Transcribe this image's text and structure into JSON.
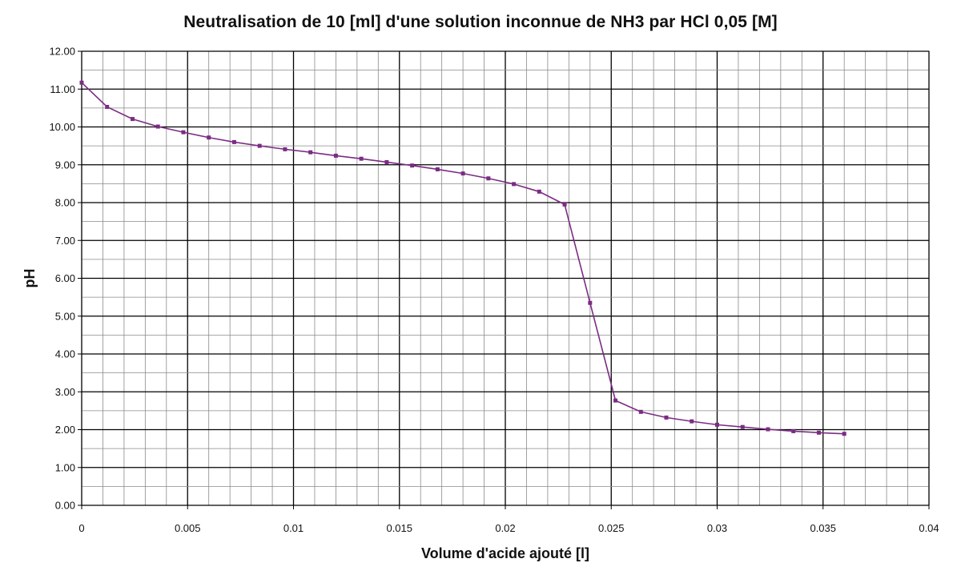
{
  "chart_data": {
    "type": "line",
    "title": "Neutralisation de 10 [ml] d'une solution inconnue de NH3 par HCl 0,05 [M]",
    "xlabel": "Volume d'acide ajouté [l]",
    "ylabel": "pH",
    "xlim": [
      0,
      0.04
    ],
    "ylim": [
      0,
      12
    ],
    "x_ticks": [
      "0",
      "0.005",
      "0.01",
      "0.015",
      "0.02",
      "0.025",
      "0.03",
      "0.035",
      "0.04"
    ],
    "y_ticks": [
      "0.00",
      "1.00",
      "2.00",
      "3.00",
      "4.00",
      "5.00",
      "6.00",
      "7.00",
      "8.00",
      "9.00",
      "10.00",
      "11.00",
      "12.00"
    ],
    "grid": true,
    "legend": "none",
    "series": [
      {
        "color": "#7b2c83",
        "x": [
          0,
          0.0012,
          0.0024,
          0.0036,
          0.0048,
          0.006,
          0.0072,
          0.0084,
          0.0096,
          0.0108,
          0.012,
          0.0132,
          0.0144,
          0.0156,
          0.0168,
          0.018,
          0.0192,
          0.0204,
          0.0216,
          0.0228,
          0.024,
          0.0252,
          0.0264,
          0.0276,
          0.0288,
          0.03,
          0.0312,
          0.0324,
          0.0336,
          0.0348,
          0.036
        ],
        "y": [
          11.17,
          10.53,
          10.21,
          10.01,
          9.86,
          9.72,
          9.6,
          9.5,
          9.41,
          9.33,
          9.24,
          9.16,
          9.07,
          8.98,
          8.88,
          8.77,
          8.64,
          8.49,
          8.29,
          7.95,
          5.35,
          2.77,
          2.47,
          2.32,
          2.22,
          2.13,
          2.07,
          2.01,
          1.96,
          1.92,
          1.89
        ]
      }
    ]
  }
}
